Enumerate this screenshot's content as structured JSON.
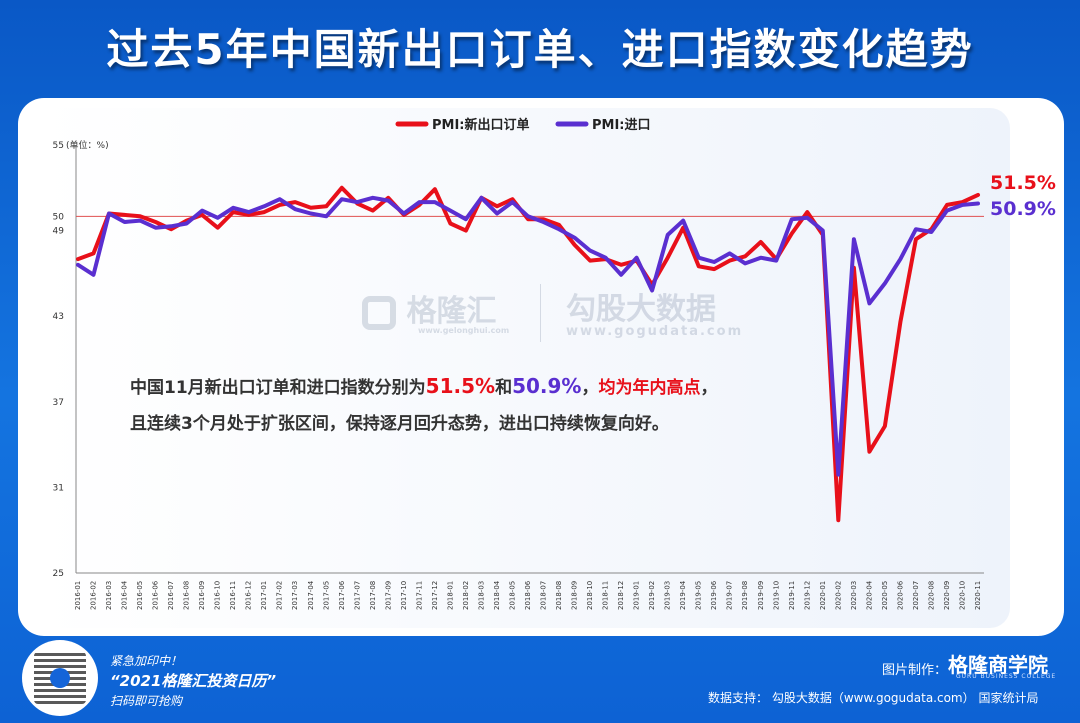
{
  "title": "过去5年中国新出口订单、进口指数变化趋势",
  "unit_label": "(单位：%)",
  "annotation": {
    "line1_a": "中国11月新出口订单和进口指数分别为",
    "line1_v1": "51.5%",
    "line1_b": "和",
    "line1_v2": "50.9%",
    "line1_c": "，",
    "line1_d": "均为年内高点",
    "line1_e": "，",
    "line2": "且连续3个月处于扩张区间，保持逐月回升态势，进出口持续恢复向好。"
  },
  "watermarks": {
    "gelonghui": "格隆汇",
    "gelonghui_url": "www.gelonghui.com",
    "gogudata": "勾股大数据",
    "gogudata_url": "www.gogudata.com"
  },
  "footer": {
    "promo1": "紧急加印中！",
    "promo2": "“2021格隆汇投资日历”",
    "promo3": "扫码即可抢购",
    "made_by_label": "图片制作：",
    "brand": "格隆商学院",
    "brand_sub": "GURU BUSINESS COLLEGE",
    "data_support": "数据支持：  勾股大数据（www.gogudata.com）    国家统计局"
  },
  "colors": {
    "export_series": "#e8101a",
    "import_series": "#5a2fd0",
    "reference_line": "#e05050"
  },
  "chart_data": {
    "type": "line",
    "x": [
      "2016-01",
      "2016-02",
      "2016-03",
      "2016-04",
      "2016-05",
      "2016-06",
      "2016-07",
      "2016-08",
      "2016-09",
      "2016-10",
      "2016-11",
      "2016-12",
      "2017-01",
      "2017-02",
      "2017-03",
      "2017-04",
      "2017-05",
      "2017-06",
      "2017-07",
      "2017-08",
      "2017-09",
      "2017-10",
      "2017-11",
      "2017-12",
      "2018-01",
      "2018-02",
      "2018-03",
      "2018-04",
      "2018-05",
      "2018-06",
      "2018-07",
      "2018-08",
      "2018-09",
      "2018-10",
      "2018-11",
      "2018-12",
      "2019-01",
      "2019-02",
      "2019-03",
      "2019-04",
      "2019-05",
      "2019-06",
      "2019-07",
      "2019-08",
      "2019-09",
      "2019-10",
      "2019-11",
      "2019-12",
      "2020-01",
      "2020-02",
      "2020-03",
      "2020-04",
      "2020-05",
      "2020-06",
      "2020-07",
      "2020-08",
      "2020-09",
      "2020-10",
      "2020-11"
    ],
    "series": [
      {
        "name": "PMI:新出口订单",
        "values": [
          47.0,
          47.4,
          50.2,
          50.1,
          50.0,
          49.6,
          49.1,
          49.7,
          50.1,
          49.2,
          50.3,
          50.1,
          50.3,
          50.8,
          51.0,
          50.6,
          50.7,
          52.0,
          50.9,
          50.4,
          51.3,
          50.1,
          50.8,
          51.9,
          49.5,
          49.0,
          51.3,
          50.7,
          51.2,
          49.8,
          49.8,
          49.4,
          48.0,
          46.9,
          47.0,
          46.6,
          46.9,
          45.2,
          47.1,
          49.2,
          46.5,
          46.3,
          46.9,
          47.2,
          48.2,
          47.0,
          48.8,
          50.3,
          48.7,
          28.7,
          46.4,
          33.5,
          35.3,
          42.6,
          48.4,
          49.1,
          50.8,
          51.0,
          51.5
        ]
      },
      {
        "name": "PMI:进口",
        "values": [
          46.6,
          45.9,
          50.2,
          49.6,
          49.7,
          49.2,
          49.3,
          49.5,
          50.4,
          49.9,
          50.6,
          50.3,
          50.7,
          51.2,
          50.5,
          50.2,
          50.0,
          51.2,
          51.0,
          51.3,
          51.1,
          50.2,
          51.0,
          51.0,
          50.4,
          49.8,
          51.3,
          50.2,
          51.0,
          50.0,
          49.6,
          49.1,
          48.5,
          47.6,
          47.1,
          45.9,
          47.1,
          44.8,
          48.7,
          49.7,
          47.1,
          46.8,
          47.4,
          46.7,
          47.1,
          46.9,
          49.8,
          49.9,
          49.0,
          31.9,
          48.4,
          43.9,
          45.3,
          47.0,
          49.1,
          48.9,
          50.4,
          50.8,
          50.9
        ]
      }
    ],
    "yticks": [
      25,
      31,
      37,
      43,
      49,
      55
    ],
    "reference_value": 50,
    "reference_label": "50",
    "ylim": [
      25,
      55
    ],
    "end_labels": [
      "51.5%",
      "50.9%"
    ],
    "legend_position": "top-center",
    "grid": false
  }
}
